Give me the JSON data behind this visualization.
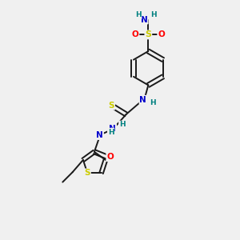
{
  "bg_color": "#f0f0f0",
  "atom_colors": {
    "C": "#000000",
    "N": "#0000cc",
    "O": "#ff0000",
    "S": "#cccc00",
    "H": "#008080"
  },
  "bond_color": "#1a1a1a",
  "bond_width": 1.4,
  "figsize": [
    3.0,
    3.0
  ],
  "dpi": 100
}
